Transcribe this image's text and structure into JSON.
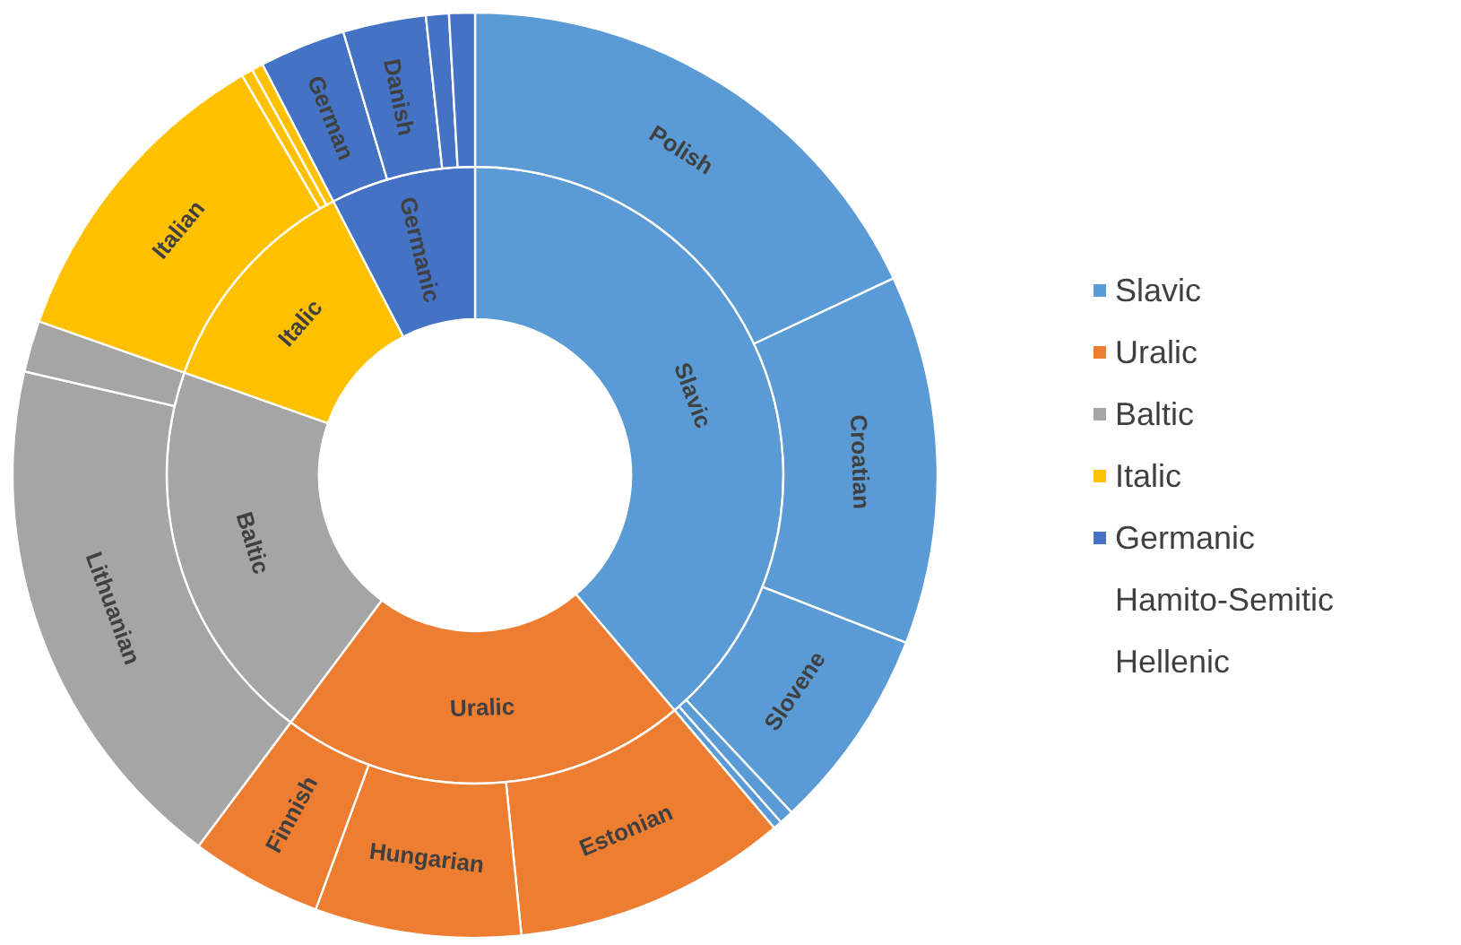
{
  "chart_data": [
    {
      "type": "donut",
      "categories": [
        "Slavic",
        "Uralic",
        "Baltic",
        "Italic",
        "Germanic",
        "Hamito-Semitic",
        "Hellenic"
      ],
      "values": [
        38.8,
        21.4,
        20.2,
        12.0,
        7.6,
        0,
        0
      ],
      "colors": [
        "#5b9bd5",
        "#ed7d31",
        "#a5a5a5",
        "#ffc000",
        "#4472c4",
        null,
        null
      ],
      "legend": "right"
    },
    {
      "type": "donut",
      "categories": [
        "Polish",
        "Croatian",
        "Slovene",
        null,
        null,
        "Estonian",
        "Hungarian",
        "Finnish",
        "Lithuanian",
        null,
        "Italian",
        null,
        null,
        "German",
        "Danish",
        null,
        null
      ],
      "values": [
        18.0,
        12.9,
        7.1,
        0.5,
        0.3,
        9.6,
        7.2,
        4.6,
        18.4,
        1.8,
        11.2,
        0.4,
        0.4,
        3.0,
        2.9,
        0.8,
        0.9
      ],
      "colors": [
        "#5b9bd5",
        "#5b9bd5",
        "#5b9bd5",
        "#5b9bd5",
        "#5b9bd5",
        "#ed7d31",
        "#ed7d31",
        "#ed7d31",
        "#a5a5a5",
        "#a5a5a5",
        "#ffc000",
        "#ffc000",
        "#ffc000",
        "#4472c4",
        "#4472c4",
        "#4472c4",
        "#4472c4"
      ]
    }
  ]
}
